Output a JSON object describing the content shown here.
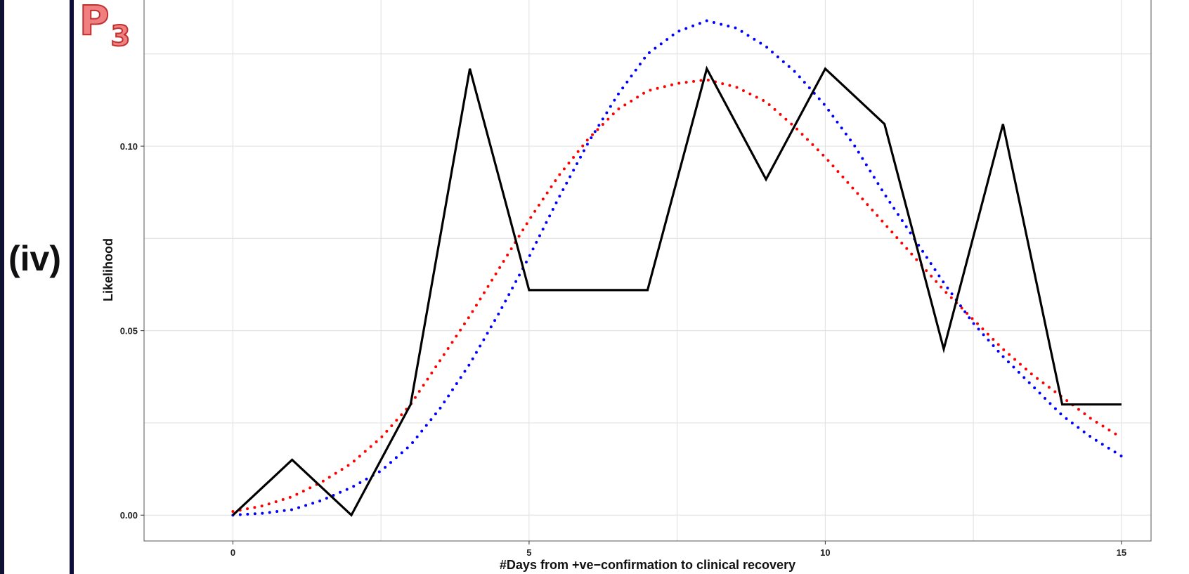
{
  "panel_label": "(iv)",
  "plot_label": {
    "main": "P",
    "sub": "3"
  },
  "chart_data": {
    "type": "line",
    "title": "",
    "xlabel": "#Days from +ve−confirmation to clinical recovery",
    "ylabel": "Likelihood",
    "xlim": [
      -1.5,
      15.5
    ],
    "ylim": [
      -0.007,
      0.14
    ],
    "x_ticks": [
      0,
      5,
      10,
      15
    ],
    "x_tick_labels": [
      "0",
      "5",
      "10",
      "15"
    ],
    "y_ticks": [
      0.0,
      0.05,
      0.1
    ],
    "y_tick_labels": [
      "0.00",
      "0.05",
      "0.10"
    ],
    "grid": true,
    "legend": "none",
    "series": [
      {
        "style": "solid",
        "color": "#000000",
        "x": [
          0,
          1,
          2,
          3,
          4,
          5,
          6,
          7,
          8,
          9,
          10,
          11,
          12,
          13,
          14,
          15
        ],
        "y": [
          0.0,
          0.015,
          0.0,
          0.03,
          0.121,
          0.061,
          0.061,
          0.061,
          0.121,
          0.091,
          0.121,
          0.106,
          0.045,
          0.106,
          0.03,
          0.03
        ]
      },
      {
        "style": "dotted",
        "color": "#ff0000",
        "x": [
          0,
          0.5,
          1,
          1.5,
          2,
          2.5,
          3,
          3.5,
          4,
          4.5,
          5,
          5.5,
          6,
          6.5,
          7,
          7.5,
          8,
          8.5,
          9,
          9.5,
          10,
          10.5,
          11,
          11.5,
          12,
          12.5,
          13,
          13.5,
          14,
          14.5,
          15
        ],
        "y": [
          0.001,
          0.0025,
          0.005,
          0.009,
          0.014,
          0.021,
          0.03,
          0.042,
          0.054,
          0.067,
          0.08,
          0.092,
          0.102,
          0.11,
          0.115,
          0.117,
          0.118,
          0.116,
          0.112,
          0.105,
          0.097,
          0.088,
          0.079,
          0.07,
          0.061,
          0.053,
          0.045,
          0.038,
          0.032,
          0.026,
          0.021
        ]
      },
      {
        "style": "dotted",
        "color": "#0000ff",
        "x": [
          0,
          0.5,
          1,
          1.5,
          2,
          2.5,
          3,
          3.5,
          4,
          4.5,
          5,
          5.5,
          6,
          6.5,
          7,
          7.5,
          8,
          8.5,
          9,
          9.5,
          10,
          10.5,
          11,
          11.5,
          12,
          12.5,
          13,
          13.5,
          14,
          14.5,
          15
        ],
        "y": [
          0.0,
          0.0005,
          0.0015,
          0.004,
          0.0075,
          0.012,
          0.019,
          0.029,
          0.041,
          0.055,
          0.07,
          0.086,
          0.101,
          0.114,
          0.125,
          0.131,
          0.134,
          0.132,
          0.127,
          0.12,
          0.111,
          0.1,
          0.087,
          0.075,
          0.063,
          0.052,
          0.043,
          0.035,
          0.027,
          0.021,
          0.016
        ]
      }
    ]
  }
}
